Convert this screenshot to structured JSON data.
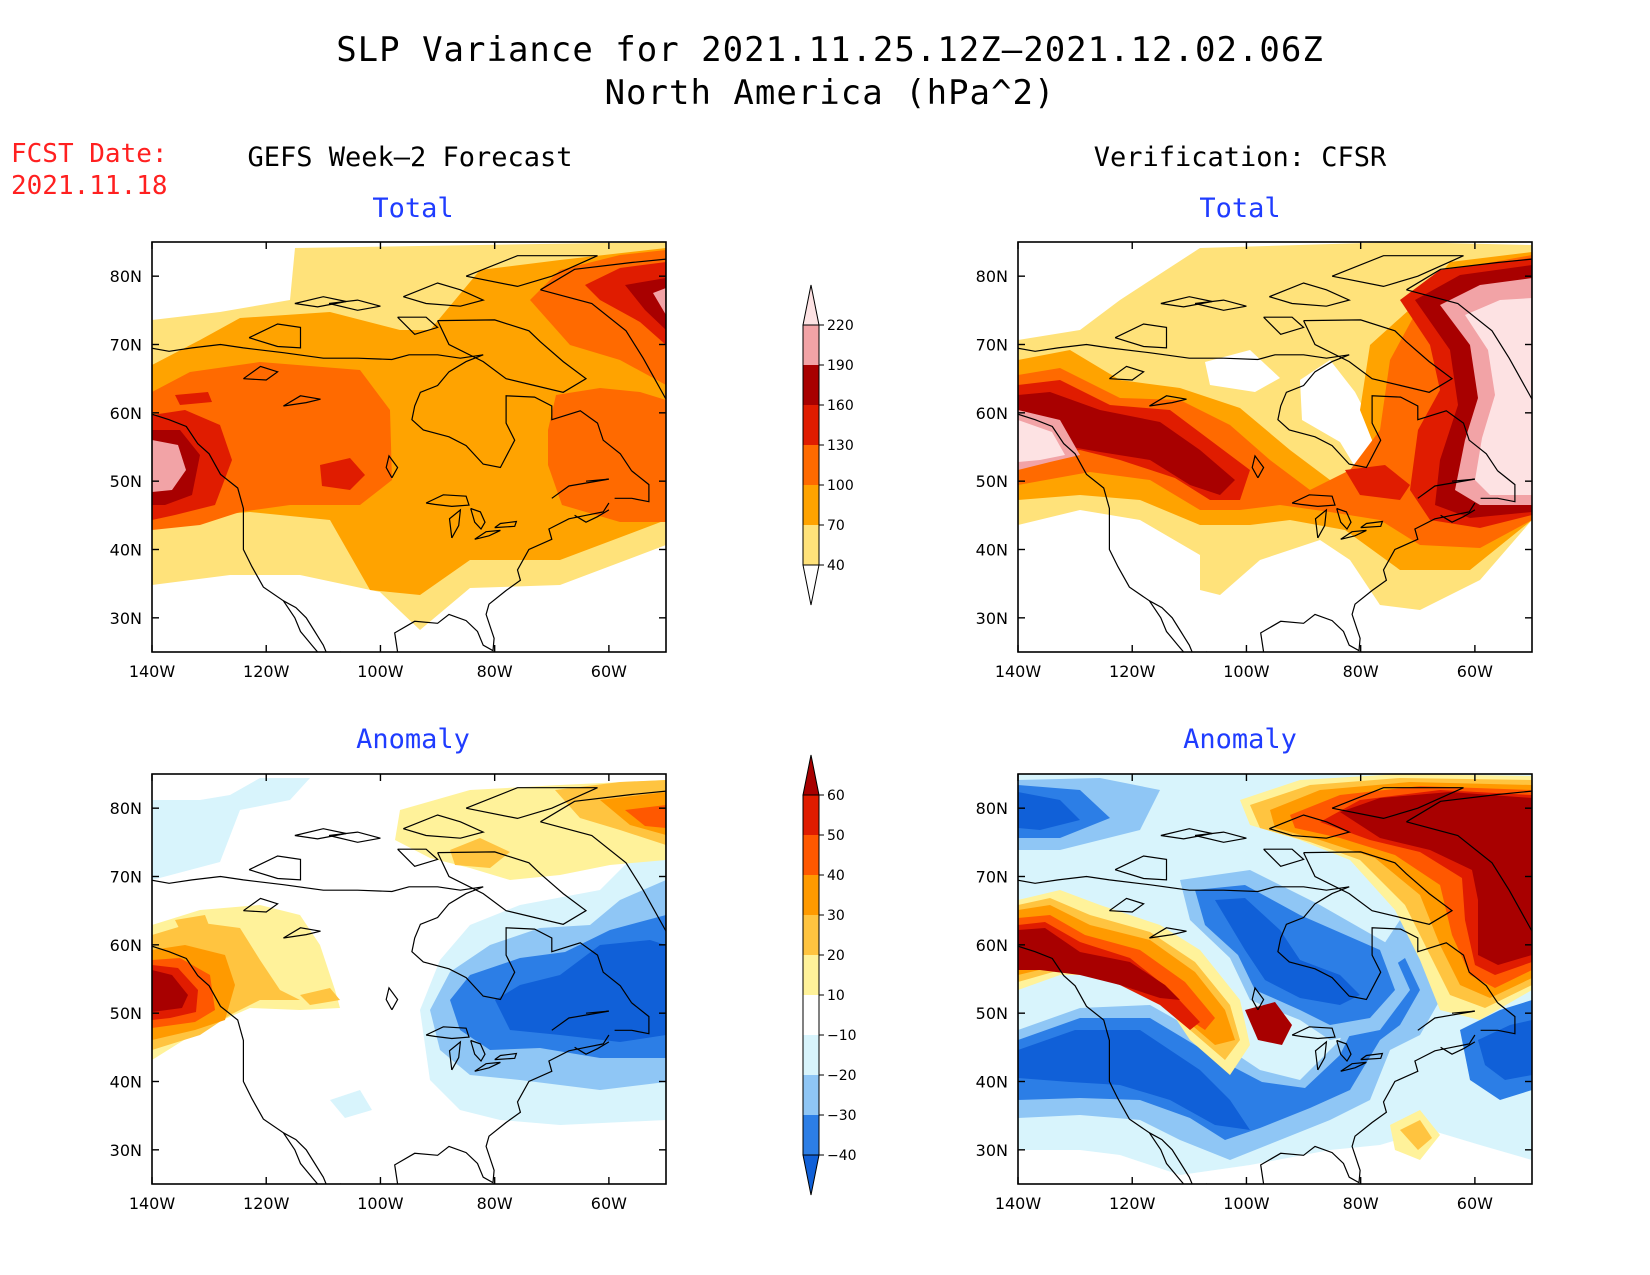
{
  "header": {
    "title": "SLP Variance for 2021.11.25.12Z–2021.12.02.06Z",
    "subtitle": "North America (hPa^2)",
    "fcst_label": "FCST Date:",
    "fcst_date": "2021.11.18"
  },
  "columns": {
    "left": "GEFS Week–2 Forecast",
    "right": "Verification: CFSR"
  },
  "panels": [
    {
      "id": "forecast-total",
      "subtitle": "Total",
      "field": "total"
    },
    {
      "id": "verification-total",
      "subtitle": "Total",
      "field": "total"
    },
    {
      "id": "forecast-anomaly",
      "subtitle": "Anomaly",
      "field": "anomaly"
    },
    {
      "id": "verification-anomaly",
      "subtitle": "Anomaly",
      "field": "anomaly"
    }
  ],
  "axes": {
    "lon_ticks": [
      "140W",
      "120W",
      "100W",
      "80W",
      "60W"
    ],
    "lat_ticks": [
      "30N",
      "40N",
      "50N",
      "60N",
      "70N",
      "80N"
    ],
    "lon_range": [
      -140,
      -50
    ],
    "lat_range": [
      25,
      85
    ]
  },
  "colorbars": {
    "total": {
      "levels": [
        "40",
        "70",
        "100",
        "130",
        "160",
        "190",
        "220"
      ],
      "colors": [
        "#ffffff",
        "#ffe27a",
        "#ffa300",
        "#ff6a00",
        "#e01c00",
        "#a80000",
        "#f2a3a6",
        "#fde2e3"
      ]
    },
    "anomaly": {
      "levels": [
        "−40",
        "−30",
        "−20",
        "−10",
        "10",
        "20",
        "30",
        "40",
        "50",
        "60"
      ],
      "colors": [
        "#1060d8",
        "#2c7ee6",
        "#8fc6f5",
        "#d8f4fc",
        "#ffffff",
        "#fff29a",
        "#ffc440",
        "#ff9a00",
        "#ff5800",
        "#e01c00",
        "#a80000"
      ]
    }
  }
}
